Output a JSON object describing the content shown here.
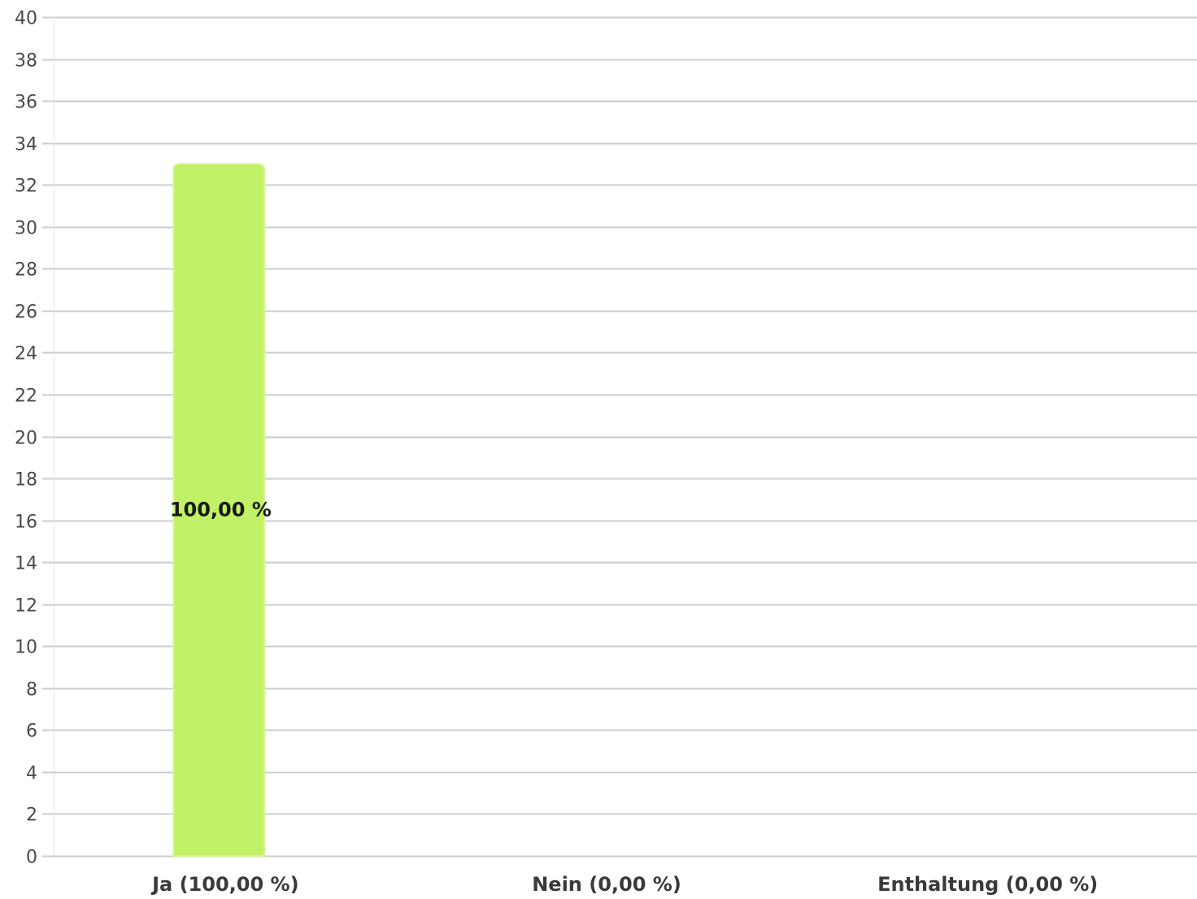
{
  "chart_data": {
    "type": "bar",
    "categories": [
      "Ja (100,00 %)",
      "Nein (0,00 %)",
      "Enthaltung (0,00 %)"
    ],
    "values": [
      33,
      0,
      0
    ],
    "data_labels": [
      "100,00 %",
      "",
      ""
    ],
    "title": "",
    "xlabel": "",
    "ylabel": "",
    "ylim": [
      0,
      40
    ],
    "y_ticks": [
      "0",
      "2",
      "4",
      "6",
      "8",
      "10",
      "12",
      "14",
      "16",
      "18",
      "20",
      "22",
      "24",
      "26",
      "28",
      "30",
      "32",
      "34",
      "36",
      "38",
      "40"
    ],
    "grid": true,
    "legend": "none",
    "colors": {
      "bar": "#c1f166",
      "bar_edge": "#d6f59a",
      "grid": "#cccccc",
      "axis": "#bbbbbb"
    }
  }
}
